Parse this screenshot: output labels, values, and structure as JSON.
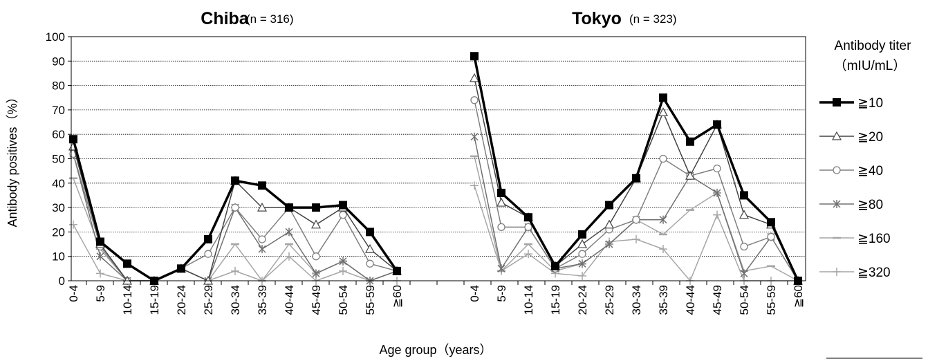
{
  "chart_data": {
    "type": "line",
    "ylabel": "Antibody positives（%）",
    "xlabel": "Age group（years）",
    "ylim": [
      0,
      100
    ],
    "yticks": [
      "0",
      "10",
      "20",
      "30",
      "40",
      "50",
      "60",
      "70",
      "80",
      "90",
      "100"
    ],
    "grid": true,
    "categories": [
      "0-4",
      "5-9",
      "10-14",
      "15-19",
      "20-24",
      "25-29",
      "30-34",
      "35-39",
      "40-44",
      "45-49",
      "50-54",
      "55-59",
      "≧60"
    ],
    "legend": {
      "title_line1": "Antibody titer",
      "title_line2": "（mIU/mL）",
      "placement": "right"
    },
    "series_styles": [
      {
        "label": "≧10",
        "color": "#000000",
        "marker": "filled-square"
      },
      {
        "label": "≧20",
        "color": "#444444",
        "marker": "open-triangle"
      },
      {
        "label": "≧40",
        "color": "#808080",
        "marker": "open-circle"
      },
      {
        "label": "≧80",
        "color": "#707070",
        "marker": "asterisk"
      },
      {
        "label": "≧160",
        "color": "#a6a6a6",
        "marker": "dash"
      },
      {
        "label": "≧320",
        "color": "#a6a6a6",
        "marker": "plus"
      }
    ],
    "panels": [
      {
        "title": "Chiba",
        "n_label": "(n = 316)",
        "series": [
          {
            "name": "≧10",
            "values": [
              58,
              16,
              7,
              0,
              5,
              17,
              41,
              39,
              30,
              30,
              31,
              20,
              4
            ]
          },
          {
            "name": "≧20",
            "values": [
              55,
              15,
              0,
              0,
              5,
              0,
              41,
              30,
              30,
              23,
              30,
              13,
              4
            ]
          },
          {
            "name": "≧40",
            "values": [
              52,
              14,
              0,
              0,
              5,
              11,
              30,
              17,
              30,
              10,
              27,
              7,
              4
            ]
          },
          {
            "name": "≧80",
            "values": [
              52,
              10,
              0,
              0,
              5,
              0,
              30,
              13,
              20,
              3,
              8,
              0,
              4
            ]
          },
          {
            "name": "≧160",
            "values": [
              42,
              13,
              0,
              0,
              5,
              0,
              15,
              0,
              15,
              3,
              8,
              0,
              4
            ]
          },
          {
            "name": "≧320",
            "values": [
              23,
              3,
              0,
              0,
              5,
              0,
              4,
              0,
              10,
              0,
              4,
              0,
              0
            ]
          }
        ]
      },
      {
        "title": "Tokyo",
        "n_label": "(n = 323)",
        "series": [
          {
            "name": "≧10",
            "values": [
              92,
              36,
              26,
              6,
              19,
              31,
              42,
              75,
              57,
              64,
              35,
              24,
              0
            ]
          },
          {
            "name": "≧20",
            "values": [
              83,
              32,
              26,
              6,
              15,
              23,
              42,
              69,
              43,
              64,
              27,
              23,
              0
            ]
          },
          {
            "name": "≧40",
            "values": [
              74,
              22,
              22,
              5,
              11,
              21,
              25,
              50,
              43,
              46,
              14,
              18,
              0
            ]
          },
          {
            "name": "≧80",
            "values": [
              59,
              5,
              22,
              5,
              7,
              15,
              25,
              25,
              43,
              36,
              3,
              18,
              0
            ]
          },
          {
            "name": "≧160",
            "values": [
              51,
              4,
              15,
              4,
              7,
              15,
              25,
              19,
              29,
              36,
              4,
              6,
              0
            ]
          },
          {
            "name": "≧320",
            "values": [
              39,
              4,
              11,
              3,
              2,
              16,
              17,
              13,
              0,
              27,
              0,
              0,
              0
            ]
          }
        ]
      }
    ]
  }
}
